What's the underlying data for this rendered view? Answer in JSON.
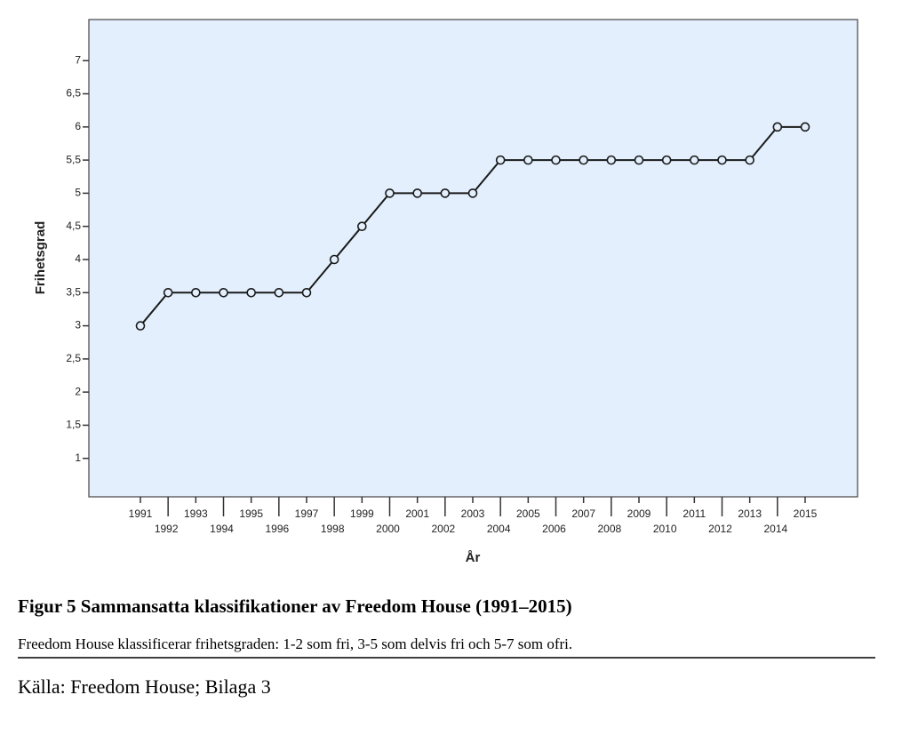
{
  "chart_data": {
    "type": "line",
    "x_label": "År",
    "y_label": "Frihetsgrad",
    "categories": [
      "1991",
      "1992",
      "1993",
      "1994",
      "1995",
      "1996",
      "1997",
      "1998",
      "1999",
      "2000",
      "2001",
      "2002",
      "2003",
      "2004",
      "2005",
      "2006",
      "2007",
      "2008",
      "2009",
      "2010",
      "2011",
      "2012",
      "2013",
      "2014",
      "2015"
    ],
    "values": [
      3,
      3.5,
      3.5,
      3.5,
      3.5,
      3.5,
      3.5,
      4,
      4.5,
      5,
      5,
      5,
      5,
      5.5,
      5.5,
      5.5,
      5.5,
      5.5,
      5.5,
      5.5,
      5.5,
      5.5,
      5.5,
      6,
      6
    ],
    "color": "#1a1a1a",
    "plot_background": "#e3effd",
    "ylim": [
      0.42,
      7.62
    ],
    "yticks": [
      1,
      {
        "value": 1.5,
        "label": "1,5"
      },
      2,
      {
        "value": 2.5,
        "label": "2,5"
      },
      3,
      {
        "value": 3.5,
        "label": "3,5"
      },
      4,
      {
        "value": 4.5,
        "label": "4,5"
      },
      5,
      {
        "value": 5.5,
        "label": "5,5"
      },
      6,
      {
        "value": 6.5,
        "label": "6,5"
      },
      7
    ],
    "grid": false
  },
  "caption": {
    "title": "Figur 5 Sammansatta klassifikationer av Freedom House (1991–2015)",
    "note": "Freedom House klassificerar frihetsgraden: 1-2 som fri, 3-5 som delvis fri och 5-7 som ofri.",
    "source": "Källa: Freedom House; Bilaga 3"
  }
}
